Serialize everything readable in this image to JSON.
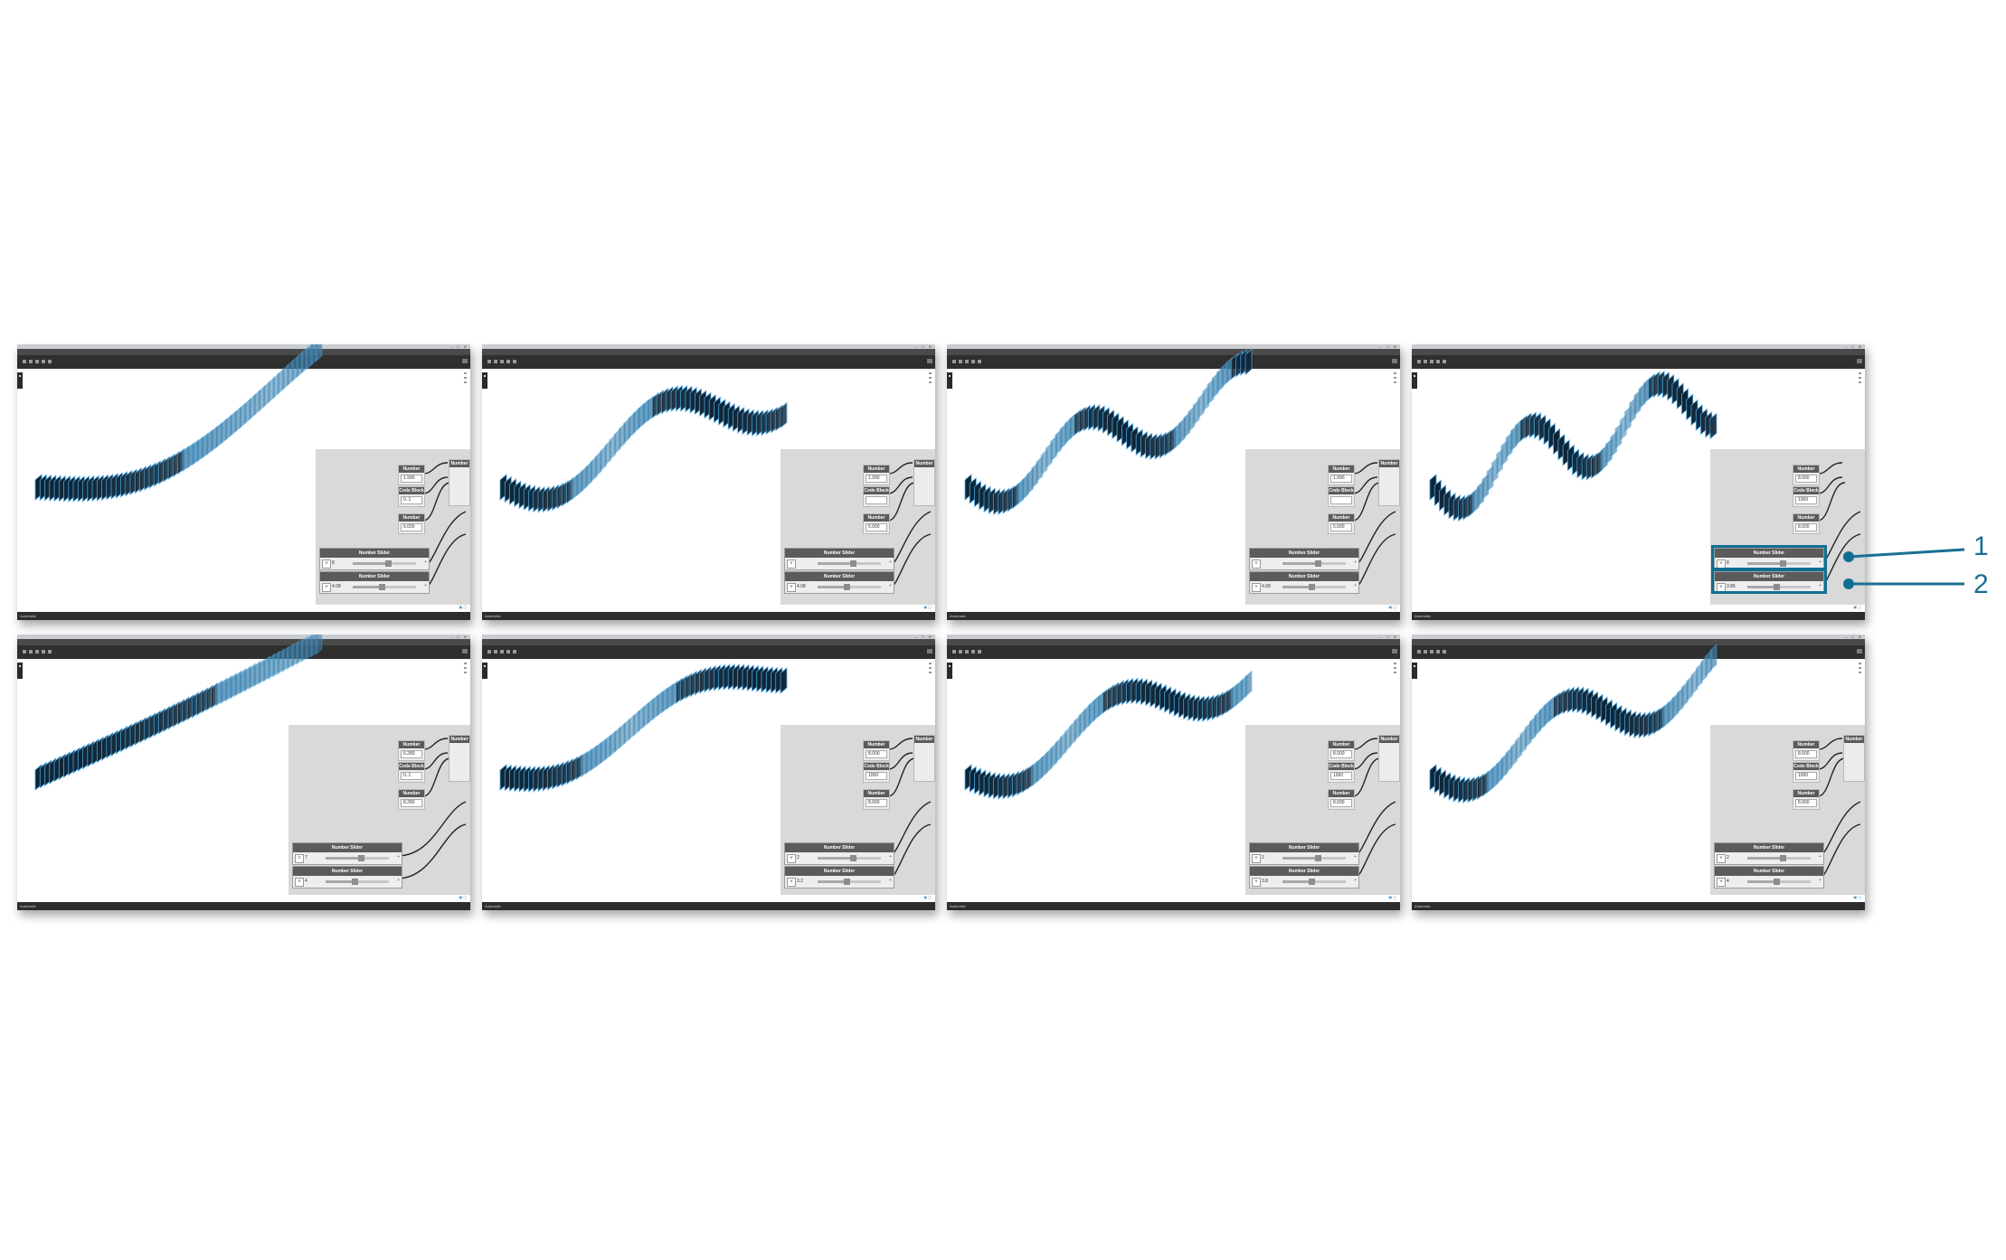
{
  "colors": {
    "accent": "#0f6f93",
    "wave_dark": "#0f2536",
    "wave_light": "#4aa6df",
    "canvas": "#d9d9d9",
    "toolbar": "#2f2f2f"
  },
  "menu": [
    "File",
    "Edit",
    "View",
    "Packages",
    "Settings",
    "Help"
  ],
  "node_labels": {
    "number": "Number",
    "code_block": "Code Block",
    "slider": "Number Slider"
  },
  "status_label": "Automatic",
  "callouts": [
    "1",
    "2"
  ],
  "panels": [
    {
      "row": 0,
      "col": 0,
      "number_values": [
        "1.990",
        "5.000"
      ],
      "code_value": "0..1",
      "slider_values": [
        "8",
        "4.08"
      ]
    },
    {
      "row": 0,
      "col": 1,
      "number_values": [
        "1.990",
        "5.000"
      ],
      "code_value": "",
      "slider_values": [
        "",
        "4.08"
      ]
    },
    {
      "row": 0,
      "col": 2,
      "number_values": [
        "1.990",
        "5.000"
      ],
      "code_value": "",
      "slider_values": [
        "",
        "4.08"
      ]
    },
    {
      "row": 0,
      "col": 3,
      "number_values": [
        "8.000",
        "8.000"
      ],
      "code_value": "1000",
      "slider_values": [
        "8",
        "3.85"
      ]
    },
    {
      "row": 1,
      "col": 0,
      "number_values": [
        "6.280",
        "8.280"
      ],
      "code_value": "0..1",
      "slider_values": [
        "7",
        "4"
      ]
    },
    {
      "row": 1,
      "col": 1,
      "number_values": [
        "8.000",
        "8.000"
      ],
      "code_value": "1000",
      "slider_values": [
        "2",
        "3.2"
      ]
    },
    {
      "row": 1,
      "col": 2,
      "number_values": [
        "8.000",
        "8.000"
      ],
      "code_value": "1000",
      "slider_values": [
        "2",
        "3.8"
      ]
    },
    {
      "row": 1,
      "col": 3,
      "number_values": [
        "8.000",
        "8.000"
      ],
      "code_value": "1000",
      "slider_values": [
        "2",
        "4"
      ]
    }
  ]
}
